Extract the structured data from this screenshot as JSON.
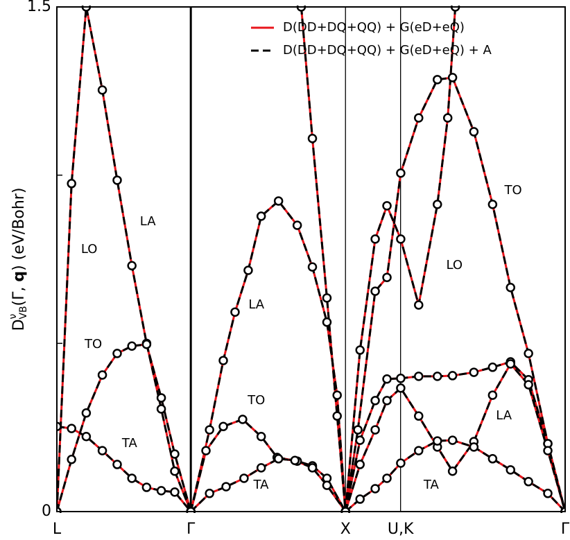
{
  "chart_data": {
    "type": "line",
    "ylabel": {
      "base": "D",
      "sup": "ν",
      "sub": "VB",
      "pre": "(Γ, ",
      "bold": "q",
      "post": ") (eV/Bohr)"
    },
    "xlim": [
      0,
      3.286
    ],
    "ylim": [
      0,
      1.5
    ],
    "yticks": [
      0,
      1.5
    ],
    "minor_yticks": [
      0.5,
      1
    ],
    "xticks": [
      {
        "value": 0,
        "label": "L"
      },
      {
        "value": 0.866,
        "label": "Γ"
      },
      {
        "value": 1.866,
        "label": "X"
      },
      {
        "value": 2.222,
        "label": "U,K"
      },
      {
        "value": 3.286,
        "label": "Γ"
      }
    ],
    "legend": "upper right",
    "series": [
      {
        "name": "D(DD+DQ+QQ) + G(eD+eQ)",
        "color": "#e8151b",
        "dash": false,
        "markers": false
      },
      {
        "name": "D(DD+DQ+QQ) + G(eD+eQ) + A",
        "color": "#000000",
        "dash": true,
        "markers": true
      }
    ],
    "curves": [
      {
        "x": [
          0,
          0.095,
          0.19,
          0.294,
          0.39,
          0.485,
          0.58,
          0.675,
          0.762,
          0.866
        ],
        "values": [
          0,
          0.975,
          1.5,
          1.253,
          0.985,
          0.731,
          0.5,
          0.305,
          0.12,
          0
        ]
      },
      {
        "x": [
          0,
          0.095,
          0.19,
          0.294,
          0.39,
          0.485,
          0.58,
          0.675,
          0.762,
          0.866
        ],
        "values": [
          0,
          0.155,
          0.293,
          0.406,
          0.47,
          0.492,
          0.497,
          0.338,
          0.171,
          0
        ]
      },
      {
        "x": [
          0,
          0.095,
          0.19,
          0.294,
          0.39,
          0.485,
          0.58,
          0.675,
          0.762,
          0.866
        ],
        "values": [
          0.253,
          0.247,
          0.223,
          0.181,
          0.14,
          0.099,
          0.072,
          0.062,
          0.058,
          0
        ]
      },
      {
        "x": [
          0.866,
          0.987,
          1.076,
          1.152,
          1.237,
          1.321,
          1.433,
          1.554,
          1.652,
          1.746,
          1.812,
          1.866
        ],
        "values": [
          0,
          0.243,
          0.449,
          0.593,
          0.717,
          0.878,
          0.923,
          0.851,
          0.727,
          0.563,
          0.346,
          0
        ]
      },
      {
        "x": [
          0.866,
          0.964,
          1.076,
          1.201,
          1.321,
          1.424,
          1.554,
          1.652,
          1.746,
          1.866
        ],
        "values": [
          0,
          0.181,
          0.253,
          0.274,
          0.223,
          0.161,
          0.15,
          0.136,
          0.099,
          0
        ]
      },
      {
        "x": [
          0.866,
          0.987,
          1.094,
          1.21,
          1.321,
          1.433,
          1.539,
          1.652,
          1.746,
          1.866
        ],
        "values": [
          0,
          0.054,
          0.074,
          0.099,
          0.13,
          0.157,
          0.152,
          0.13,
          0.078,
          0
        ]
      },
      {
        "x": [
          1.58,
          1.652,
          1.746,
          1.812,
          1.866
        ],
        "values": [
          1.5,
          1.109,
          0.635,
          0.284,
          0
        ]
      },
      {
        "x": [
          1.866,
          1.96,
          2.058,
          2.134,
          2.223,
          2.339,
          2.46,
          2.527,
          2.576
        ],
        "values": [
          0,
          0.48,
          0.81,
          0.909,
          0.81,
          0.614,
          0.913,
          1.17,
          1.5
        ]
      },
      {
        "x": [
          1.866,
          1.946,
          2.058,
          2.134,
          2.223,
          2.339,
          2.46,
          2.558,
          2.696,
          2.817,
          2.933,
          3.049,
          3.174,
          3.286
        ],
        "values": [
          0,
          0.243,
          0.655,
          0.696,
          1.006,
          1.17,
          1.284,
          1.29,
          1.129,
          0.913,
          0.666,
          0.47,
          0.202,
          0
        ]
      },
      {
        "x": [
          1.866,
          1.96,
          2.058,
          2.134,
          2.223,
          2.339,
          2.46,
          2.558,
          2.696,
          2.817,
          2.933,
          3.049,
          3.174,
          3.286
        ],
        "values": [
          0,
          0.212,
          0.33,
          0.394,
          0.396,
          0.402,
          0.402,
          0.404,
          0.414,
          0.429,
          0.445,
          0.392,
          0.202,
          0
        ]
      },
      {
        "x": [
          1.866,
          1.96,
          2.058,
          2.134,
          2.223,
          2.339,
          2.46,
          2.558,
          2.696,
          2.817,
          2.933,
          3.049,
          3.174,
          3.286
        ],
        "values": [
          0,
          0.14,
          0.243,
          0.33,
          0.367,
          0.284,
          0.192,
          0.12,
          0.208,
          0.346,
          0.439,
          0.377,
          0.181,
          0
        ]
      },
      {
        "x": [
          1.866,
          1.96,
          2.058,
          2.134,
          2.223,
          2.339,
          2.46,
          2.558,
          2.696,
          2.817,
          2.933,
          3.049,
          3.174,
          3.286
        ],
        "values": [
          0,
          0.037,
          0.068,
          0.099,
          0.144,
          0.181,
          0.21,
          0.212,
          0.192,
          0.157,
          0.124,
          0.089,
          0.054,
          0
        ]
      }
    ],
    "annotations": [
      {
        "text": "LO",
        "x": 0.209,
        "y": 0.779
      },
      {
        "text": "LA",
        "x": 0.588,
        "y": 0.861
      },
      {
        "text": "TO",
        "x": 0.236,
        "y": 0.497
      },
      {
        "text": "TA",
        "x": 0.47,
        "y": 0.202
      },
      {
        "text": "LA",
        "x": 1.29,
        "y": 0.614
      },
      {
        "text": "TO",
        "x": 1.29,
        "y": 0.33
      },
      {
        "text": "TA",
        "x": 1.32,
        "y": 0.078
      },
      {
        "text": "LO",
        "x": 2.57,
        "y": 0.731
      },
      {
        "text": "TO",
        "x": 2.95,
        "y": 0.954
      },
      {
        "text": "LA",
        "x": 2.89,
        "y": 0.284
      },
      {
        "text": "TA",
        "x": 2.42,
        "y": 0.078
      }
    ]
  }
}
